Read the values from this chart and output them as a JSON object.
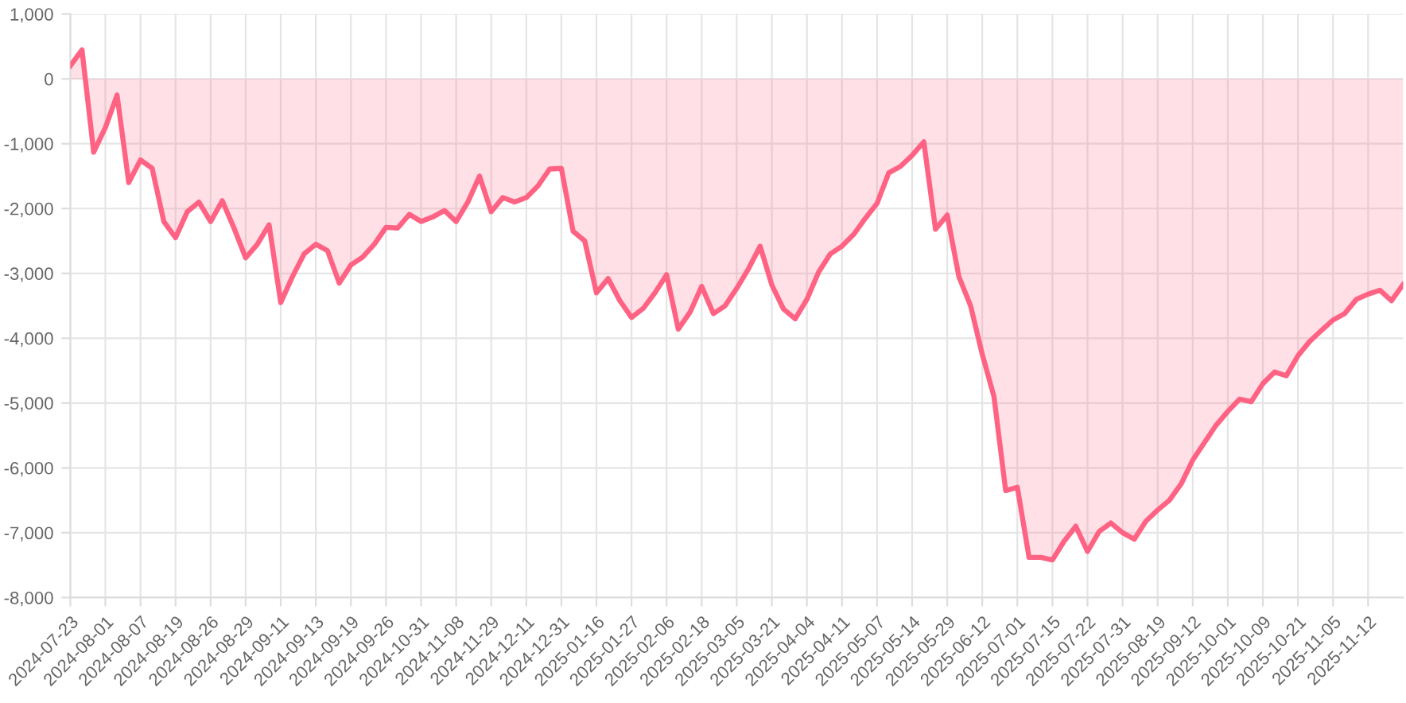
{
  "chart_data": {
    "type": "area",
    "categories": [
      "2024-07-23",
      null,
      null,
      "2024-08-01",
      null,
      null,
      "2024-08-07",
      null,
      null,
      "2024-08-19",
      null,
      null,
      "2024-08-26",
      null,
      null,
      "2024-08-29",
      null,
      null,
      "2024-09-11",
      null,
      null,
      "2024-09-13",
      null,
      null,
      "2024-09-19",
      null,
      null,
      "2024-09-26",
      null,
      null,
      "2024-10-31",
      null,
      null,
      "2024-11-08",
      null,
      null,
      "2024-11-29",
      null,
      null,
      "2024-12-11",
      null,
      null,
      "2024-12-31",
      null,
      null,
      "2025-01-16",
      null,
      null,
      "2025-01-27",
      null,
      null,
      "2025-02-06",
      null,
      null,
      "2025-02-18",
      null,
      null,
      "2025-03-05",
      null,
      null,
      "2025-03-21",
      null,
      null,
      "2025-04-04",
      null,
      null,
      "2025-04-11",
      null,
      null,
      "2025-05-07",
      null,
      null,
      "2025-05-14",
      null,
      null,
      "2025-05-29",
      null,
      null,
      "2025-06-12",
      null,
      null,
      "2025-07-01",
      null,
      null,
      "2025-07-15",
      null,
      null,
      "2025-07-22",
      null,
      null,
      "2025-07-31",
      null,
      null,
      "2025-08-19",
      null,
      null,
      "2025-09-12",
      null,
      null,
      "2025-10-01",
      null,
      null,
      "2025-10-09",
      null,
      null,
      "2025-10-21",
      null,
      null,
      "2025-11-05",
      null,
      null,
      "2025-11-12",
      null,
      null,
      null
    ],
    "series": [
      {
        "color": "#ff6384",
        "values": [
          200,
          450,
          -1130,
          -750,
          -250,
          -1600,
          -1250,
          -1380,
          -2200,
          -2450,
          -2050,
          -1900,
          -2200,
          -1880,
          -2300,
          -2760,
          -2550,
          -2250,
          -3450,
          -3050,
          -2700,
          -2550,
          -2650,
          -3150,
          -2870,
          -2750,
          -2550,
          -2290,
          -2300,
          -2090,
          -2200,
          -2130,
          -2030,
          -2200,
          -1900,
          -1500,
          -2050,
          -1830,
          -1900,
          -1830,
          -1650,
          -1390,
          -1380,
          -2350,
          -2500,
          -3300,
          -3080,
          -3420,
          -3680,
          -3540,
          -3300,
          -3020,
          -3860,
          -3600,
          -3200,
          -3620,
          -3500,
          -3230,
          -2930,
          -2580,
          -3180,
          -3550,
          -3700,
          -3400,
          -2980,
          -2700,
          -2580,
          -2400,
          -2150,
          -1920,
          -1450,
          -1350,
          -1180,
          -970,
          -2320,
          -2100,
          -3050,
          -3500,
          -4250,
          -4900,
          -6350,
          -6300,
          -7380,
          -7380,
          -7420,
          -7130,
          -6900,
          -7290,
          -6980,
          -6850,
          -7000,
          -7100,
          -6820,
          -6650,
          -6500,
          -6250,
          -5880,
          -5610,
          -5340,
          -5130,
          -4940,
          -4980,
          -4700,
          -4520,
          -4580,
          -4270,
          -4050,
          -3880,
          -3720,
          -3620,
          -3400,
          -3320,
          -3260,
          -3420,
          -3170
        ]
      }
    ],
    "ylim": [
      -8000,
      1000
    ],
    "yticks": [
      {
        "value": 1000,
        "label": "1,000"
      },
      0,
      {
        "value": -1000,
        "label": "-1,000"
      },
      {
        "value": -2000,
        "label": "-2,000"
      },
      {
        "value": -3000,
        "label": "-3,000"
      },
      {
        "value": -4000,
        "label": "-4,000"
      },
      {
        "value": -5000,
        "label": "-5,000"
      },
      {
        "value": -6000,
        "label": "-6,000"
      },
      {
        "value": -7000,
        "label": "-7,000"
      },
      {
        "value": -8000,
        "label": "-8,000"
      }
    ],
    "grid": true
  }
}
